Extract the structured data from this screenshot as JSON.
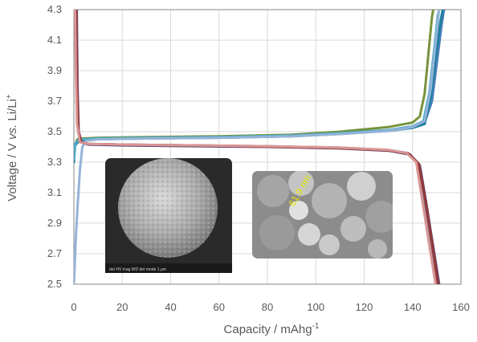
{
  "chart_data": {
    "type": "line",
    "xlabel": "Capacity / mAhg",
    "xlabel_sup": "-1",
    "ylabel_prefix": "Voltage / V ",
    "ylabel_italic": "vs.",
    "ylabel_suffix": " Li/Li",
    "ylabel_sup": "+",
    "xlim": [
      0,
      160
    ],
    "ylim": [
      2.5,
      4.3
    ],
    "x_ticks": [
      0,
      20,
      40,
      60,
      80,
      100,
      120,
      140,
      160
    ],
    "y_ticks": [
      2.5,
      2.7,
      2.9,
      3.1,
      3.3,
      3.5,
      3.7,
      3.9,
      4.1,
      4.3
    ],
    "x_tick_labels": [
      "0",
      "20",
      "40",
      "60",
      "80",
      "100",
      "120",
      "140",
      "160"
    ],
    "y_tick_labels": [
      "2.5",
      "2.7",
      "2.9",
      "3.1",
      "3.3",
      "3.5",
      "3.7",
      "3.9",
      "4.1",
      "4.3"
    ],
    "grid": true,
    "series": [
      {
        "kind": "charge",
        "color": "#4a7ebb",
        "points": [
          [
            0,
            3.33
          ],
          [
            0.5,
            3.42
          ],
          [
            1.5,
            3.44
          ],
          [
            4,
            3.45
          ],
          [
            10,
            3.455
          ],
          [
            30,
            3.46
          ],
          [
            60,
            3.465
          ],
          [
            90,
            3.475
          ],
          [
            110,
            3.49
          ],
          [
            130,
            3.51
          ],
          [
            140,
            3.53
          ],
          [
            145,
            3.56
          ],
          [
            148,
            3.7
          ],
          [
            150,
            3.95
          ],
          [
            152,
            4.2
          ],
          [
            153,
            4.3
          ]
        ]
      },
      {
        "kind": "charge",
        "color": "#1f7f9e",
        "points": [
          [
            0,
            3.3
          ],
          [
            0.5,
            3.41
          ],
          [
            1.5,
            3.43
          ],
          [
            4,
            3.445
          ],
          [
            10,
            3.45
          ],
          [
            30,
            3.455
          ],
          [
            60,
            3.46
          ],
          [
            90,
            3.47
          ],
          [
            110,
            3.485
          ],
          [
            130,
            3.505
          ],
          [
            140,
            3.525
          ],
          [
            145,
            3.55
          ],
          [
            147.5,
            3.72
          ],
          [
            149.5,
            3.98
          ],
          [
            151.5,
            4.22
          ],
          [
            152.5,
            4.3
          ]
        ]
      },
      {
        "kind": "charge",
        "color": "#77933c",
        "points": [
          [
            0,
            3.34
          ],
          [
            0.5,
            3.42
          ],
          [
            1.5,
            3.45
          ],
          [
            4,
            3.455
          ],
          [
            10,
            3.46
          ],
          [
            30,
            3.465
          ],
          [
            60,
            3.47
          ],
          [
            90,
            3.48
          ],
          [
            110,
            3.5
          ],
          [
            130,
            3.53
          ],
          [
            140,
            3.56
          ],
          [
            143,
            3.6
          ],
          [
            145,
            3.75
          ],
          [
            146.5,
            4.0
          ],
          [
            148,
            4.25
          ],
          [
            148.5,
            4.3
          ]
        ]
      },
      {
        "kind": "charge",
        "color": "#4bacc6",
        "points": [
          [
            0,
            3.32
          ],
          [
            0.5,
            3.42
          ],
          [
            1.5,
            3.44
          ],
          [
            4,
            3.45
          ],
          [
            10,
            3.455
          ],
          [
            30,
            3.46
          ],
          [
            60,
            3.465
          ],
          [
            90,
            3.475
          ],
          [
            110,
            3.49
          ],
          [
            130,
            3.51
          ],
          [
            140,
            3.535
          ],
          [
            144.5,
            3.57
          ],
          [
            147,
            3.76
          ],
          [
            148.8,
            4.02
          ],
          [
            150.4,
            4.26
          ],
          [
            151,
            4.3
          ]
        ]
      },
      {
        "kind": "charge",
        "color": "#95b3d7",
        "points": [
          [
            0,
            2.5
          ],
          [
            0.3,
            2.6
          ],
          [
            0.8,
            2.8
          ],
          [
            1.5,
            3.0
          ],
          [
            2.5,
            3.25
          ],
          [
            3.5,
            3.4
          ],
          [
            5,
            3.44
          ],
          [
            10,
            3.45
          ],
          [
            30,
            3.455
          ],
          [
            60,
            3.46
          ],
          [
            90,
            3.47
          ],
          [
            110,
            3.485
          ],
          [
            130,
            3.505
          ],
          [
            140,
            3.53
          ],
          [
            145,
            3.57
          ],
          [
            147.5,
            3.78
          ],
          [
            149.3,
            4.05
          ],
          [
            150.8,
            4.28
          ],
          [
            151,
            4.3
          ]
        ]
      },
      {
        "kind": "discharge",
        "color": "#7f7f9f",
        "points": [
          [
            0.8,
            4.3
          ],
          [
            1.2,
            3.8
          ],
          [
            1.8,
            3.5
          ],
          [
            3,
            3.43
          ],
          [
            6,
            3.42
          ],
          [
            20,
            3.415
          ],
          [
            50,
            3.41
          ],
          [
            80,
            3.405
          ],
          [
            110,
            3.395
          ],
          [
            130,
            3.38
          ],
          [
            138,
            3.36
          ],
          [
            142,
            3.3
          ],
          [
            144,
            3.1
          ],
          [
            146,
            2.9
          ],
          [
            148,
            2.7
          ],
          [
            150,
            2.5
          ]
        ]
      },
      {
        "kind": "discharge",
        "color": "#604a7b",
        "points": [
          [
            1.2,
            4.3
          ],
          [
            1.5,
            3.8
          ],
          [
            2,
            3.5
          ],
          [
            3.2,
            3.43
          ],
          [
            6,
            3.415
          ],
          [
            20,
            3.41
          ],
          [
            50,
            3.405
          ],
          [
            80,
            3.4
          ],
          [
            110,
            3.39
          ],
          [
            130,
            3.375
          ],
          [
            139,
            3.35
          ],
          [
            143,
            3.28
          ],
          [
            145.5,
            3.05
          ],
          [
            147.5,
            2.85
          ],
          [
            149.5,
            2.65
          ],
          [
            151,
            2.5
          ]
        ]
      },
      {
        "kind": "discharge",
        "color": "#953735",
        "points": [
          [
            0.9,
            4.3
          ],
          [
            1.3,
            3.8
          ],
          [
            1.9,
            3.5
          ],
          [
            3.1,
            3.43
          ],
          [
            6,
            3.42
          ],
          [
            20,
            3.415
          ],
          [
            50,
            3.41
          ],
          [
            80,
            3.402
          ],
          [
            110,
            3.392
          ],
          [
            130,
            3.378
          ],
          [
            138.5,
            3.355
          ],
          [
            142.5,
            3.29
          ],
          [
            145,
            3.08
          ],
          [
            147,
            2.88
          ],
          [
            149,
            2.67
          ],
          [
            150.5,
            2.5
          ]
        ]
      },
      {
        "kind": "discharge",
        "color": "#d99694",
        "points": [
          [
            0.5,
            4.3
          ],
          [
            0.8,
            3.9
          ],
          [
            1.3,
            3.55
          ],
          [
            2.5,
            3.43
          ],
          [
            6,
            3.42
          ],
          [
            20,
            3.415
          ],
          [
            50,
            3.41
          ],
          [
            80,
            3.405
          ],
          [
            110,
            3.395
          ],
          [
            130,
            3.38
          ],
          [
            137.5,
            3.36
          ],
          [
            141.5,
            3.3
          ],
          [
            143.5,
            3.1
          ],
          [
            145.5,
            2.9
          ],
          [
            147.5,
            2.7
          ],
          [
            149.5,
            2.5
          ]
        ]
      }
    ],
    "insets": [
      {
        "kind": "sem-particle",
        "footer": "det HV mag WD det mode  1 µm"
      },
      {
        "kind": "sem-zoom",
        "annotation": "61.9 nm"
      }
    ]
  }
}
